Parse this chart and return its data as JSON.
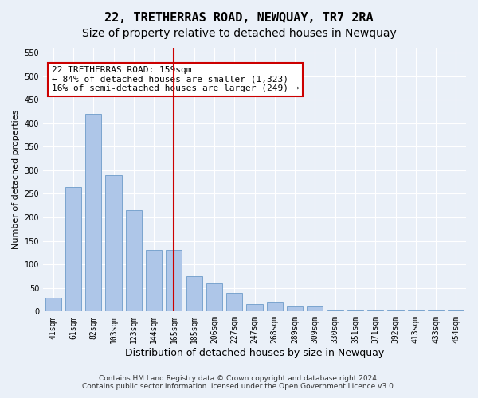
{
  "title": "22, TRETHERRAS ROAD, NEWQUAY, TR7 2RA",
  "subtitle": "Size of property relative to detached houses in Newquay",
  "xlabel": "Distribution of detached houses by size in Newquay",
  "ylabel": "Number of detached properties",
  "categories": [
    "41sqm",
    "61sqm",
    "82sqm",
    "103sqm",
    "123sqm",
    "144sqm",
    "165sqm",
    "185sqm",
    "206sqm",
    "227sqm",
    "247sqm",
    "268sqm",
    "289sqm",
    "309sqm",
    "330sqm",
    "351sqm",
    "371sqm",
    "392sqm",
    "413sqm",
    "433sqm",
    "454sqm"
  ],
  "values": [
    30,
    265,
    420,
    290,
    215,
    130,
    130,
    75,
    60,
    40,
    15,
    20,
    10,
    10,
    3,
    3,
    3,
    2,
    3,
    2,
    2
  ],
  "bar_color": "#aec6e8",
  "bar_edge_color": "#5a8fc2",
  "bar_edge_width": 0.5,
  "vline_x": 6,
  "vline_color": "#cc0000",
  "annotation_text": "22 TRETHERRAS ROAD: 159sqm\n← 84% of detached houses are smaller (1,323)\n16% of semi-detached houses are larger (249) →",
  "annotation_box_color": "#ffffff",
  "annotation_box_edge_color": "#cc0000",
  "ylim": [
    0,
    560
  ],
  "yticks": [
    0,
    50,
    100,
    150,
    200,
    250,
    300,
    350,
    400,
    450,
    500,
    550
  ],
  "bg_color": "#eaf0f8",
  "plot_bg_color": "#eaf0f8",
  "footer_line1": "Contains HM Land Registry data © Crown copyright and database right 2024.",
  "footer_line2": "Contains public sector information licensed under the Open Government Licence v3.0.",
  "title_fontsize": 11,
  "subtitle_fontsize": 10,
  "xlabel_fontsize": 9,
  "ylabel_fontsize": 8,
  "tick_fontsize": 7,
  "footer_fontsize": 6.5,
  "annotation_fontsize": 8
}
